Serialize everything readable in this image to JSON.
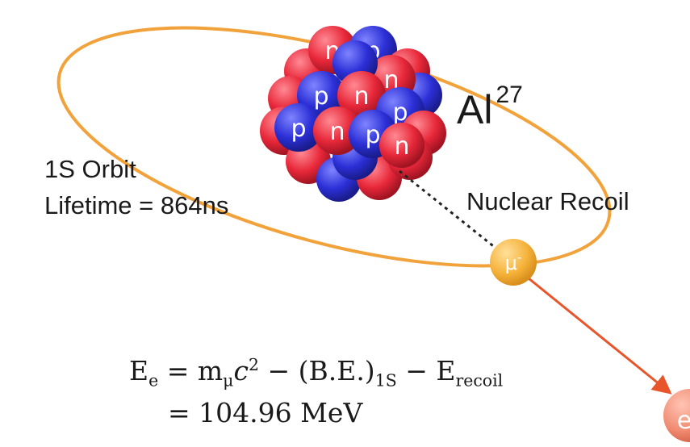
{
  "diagram": {
    "element_label": "Al",
    "mass_number": "27",
    "orbit_label": "1S Orbit",
    "lifetime_label": "Lifetime = 864ns",
    "recoil_label": "Nuclear Recoil",
    "muon_symbol": "μ",
    "muon_charge": "-",
    "electron_symbol": "e",
    "proton_letter": "p",
    "neutron_letter": "n",
    "colors": {
      "orbit": "#f2a23a",
      "proton": "#2b2fd6",
      "neutron": "#e8283a",
      "muon": "#f5b23a",
      "electron_arrow": "#e8552b",
      "electron": "#f08a70"
    }
  },
  "equation": {
    "line1": {
      "lhs_E": "E",
      "lhs_sub": "e",
      "eq": "=",
      "m": "m",
      "m_sub": "μ",
      "c": "c",
      "c_sup": "2",
      "minus1": "−",
      "be": "(B.E.)",
      "be_sub": "1S",
      "minus2": "−",
      "erec_E": "E",
      "erec_sub": "recoil"
    },
    "line2": {
      "eq": "=",
      "value": "104.96",
      "unit": "MeV"
    }
  }
}
